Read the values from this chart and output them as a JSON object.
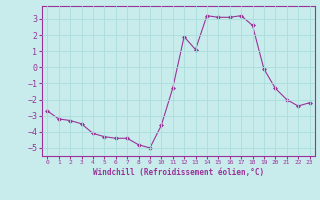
{
  "x": [
    0,
    1,
    2,
    3,
    4,
    5,
    6,
    7,
    8,
    9,
    10,
    11,
    12,
    13,
    14,
    15,
    16,
    17,
    18,
    19,
    20,
    21,
    22,
    23
  ],
  "y": [
    -2.7,
    -3.2,
    -3.3,
    -3.5,
    -4.1,
    -4.3,
    -4.4,
    -4.4,
    -4.8,
    -5.0,
    -3.6,
    -1.3,
    1.9,
    1.1,
    3.2,
    3.1,
    3.1,
    3.2,
    2.6,
    -0.1,
    -1.3,
    -2.0,
    -2.4,
    -2.2
  ],
  "line_color": "#993399",
  "marker": "D",
  "marker_size": 2,
  "bg_color": "#c8ecec",
  "grid_color": "#aadddd",
  "xlabel": "Windchill (Refroidissement éolien,°C)",
  "ylim": [
    -5.5,
    3.8
  ],
  "xlim": [
    -0.5,
    23.5
  ],
  "yticks": [
    -5,
    -4,
    -3,
    -2,
    -1,
    0,
    1,
    2,
    3
  ],
  "xticks": [
    0,
    1,
    2,
    3,
    4,
    5,
    6,
    7,
    8,
    9,
    10,
    11,
    12,
    13,
    14,
    15,
    16,
    17,
    18,
    19,
    20,
    21,
    22,
    23
  ],
  "label_color": "#993399",
  "tick_color": "#993399",
  "spine_color": "#993399"
}
